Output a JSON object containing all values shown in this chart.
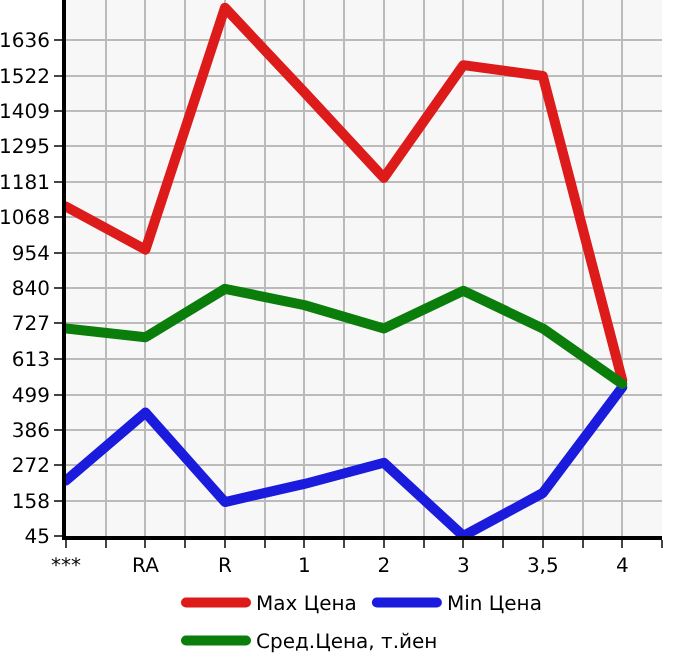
{
  "chart_data": {
    "type": "line",
    "categories": [
      "***",
      "RA",
      "R",
      "1",
      "2",
      "3",
      "3,5",
      "4"
    ],
    "series": [
      {
        "name": "Max Цена",
        "color": "#dd1b1b",
        "values": [
          1102,
          964,
          1740,
          1469,
          1194,
          1556,
          1521,
          545
        ]
      },
      {
        "name": "Min Цена",
        "color": "#1b1bdd",
        "values": [
          223,
          441,
          154,
          212,
          280,
          45,
          183,
          522
        ]
      },
      {
        "name": "Сред.Цена, т.йен",
        "color": "#0a7d0a",
        "values": [
          711,
          683,
          838,
          786,
          711,
          832,
          711,
          533
        ]
      }
    ],
    "ylim": [
      45,
      1765
    ],
    "yticks": [
      45,
      158,
      272,
      386,
      499,
      613,
      727,
      840,
      954,
      1068,
      1181,
      1295,
      1409,
      1522,
      1636
    ],
    "grid": true,
    "legend": "bottom",
    "marker": "none",
    "line_style": "solid"
  }
}
